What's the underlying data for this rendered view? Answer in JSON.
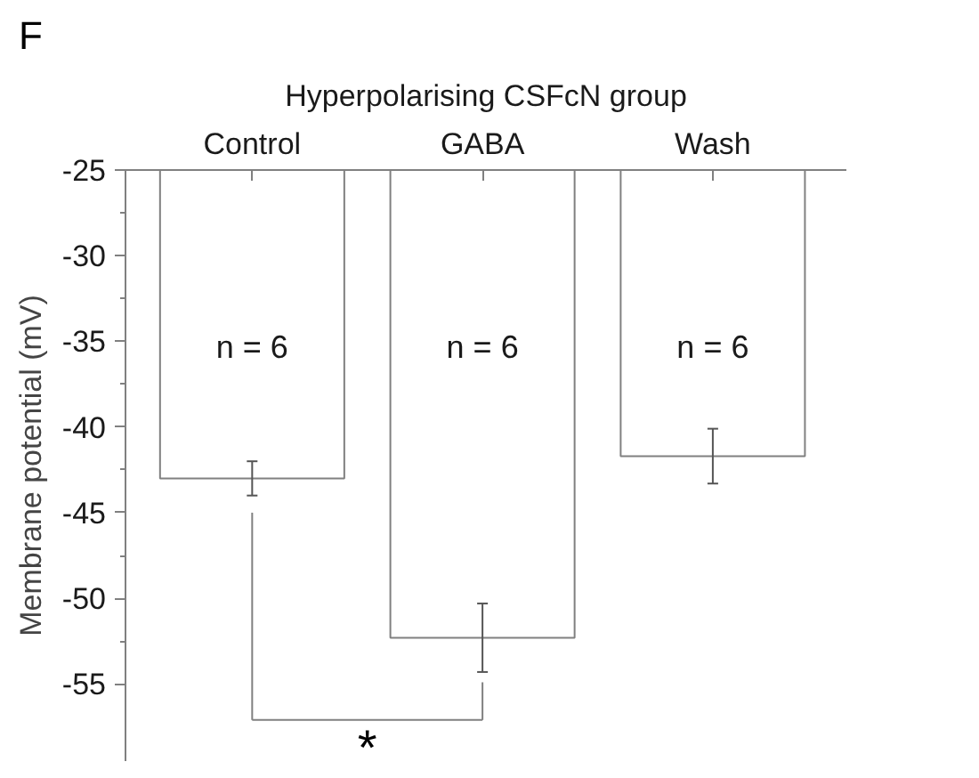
{
  "chart_data": {
    "type": "bar",
    "title": "Hyperpolarising CSFcN group",
    "ylabel": "Membrane potential (mV)",
    "categories": [
      "Control",
      "GABA",
      "Wash"
    ],
    "values": [
      -43.0,
      -52.3,
      -41.7
    ],
    "errors": [
      1.0,
      2.0,
      1.6
    ],
    "color": "#ffffff",
    "ylim": [
      -59.5,
      -25
    ],
    "yticks": [
      -25,
      -30,
      -35,
      -40,
      -45,
      -50,
      -55
    ],
    "grid": false,
    "annotations": [
      "F",
      "n = 6",
      "n = 6",
      "n = 6",
      "*"
    ]
  }
}
